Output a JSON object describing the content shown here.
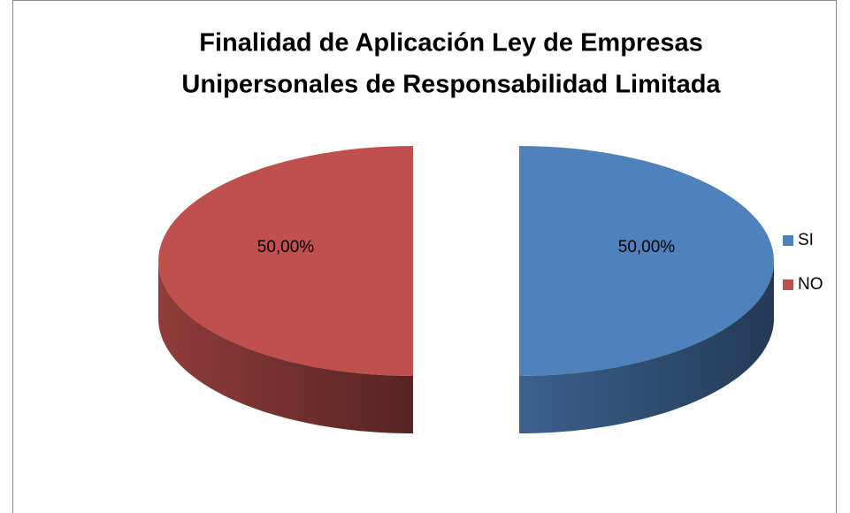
{
  "chart_data": {
    "type": "pie3d",
    "title": [
      "Finalidad de Aplicación Ley de Empresas",
      "Unipersonales de Responsabilidad Limitada"
    ],
    "categories": [
      "SI",
      "NO"
    ],
    "values": [
      50,
      50
    ],
    "value_labels": [
      "50,00%",
      "50,00%"
    ],
    "colors": [
      "#4f81bd",
      "#c0504d"
    ],
    "legend": "right"
  }
}
